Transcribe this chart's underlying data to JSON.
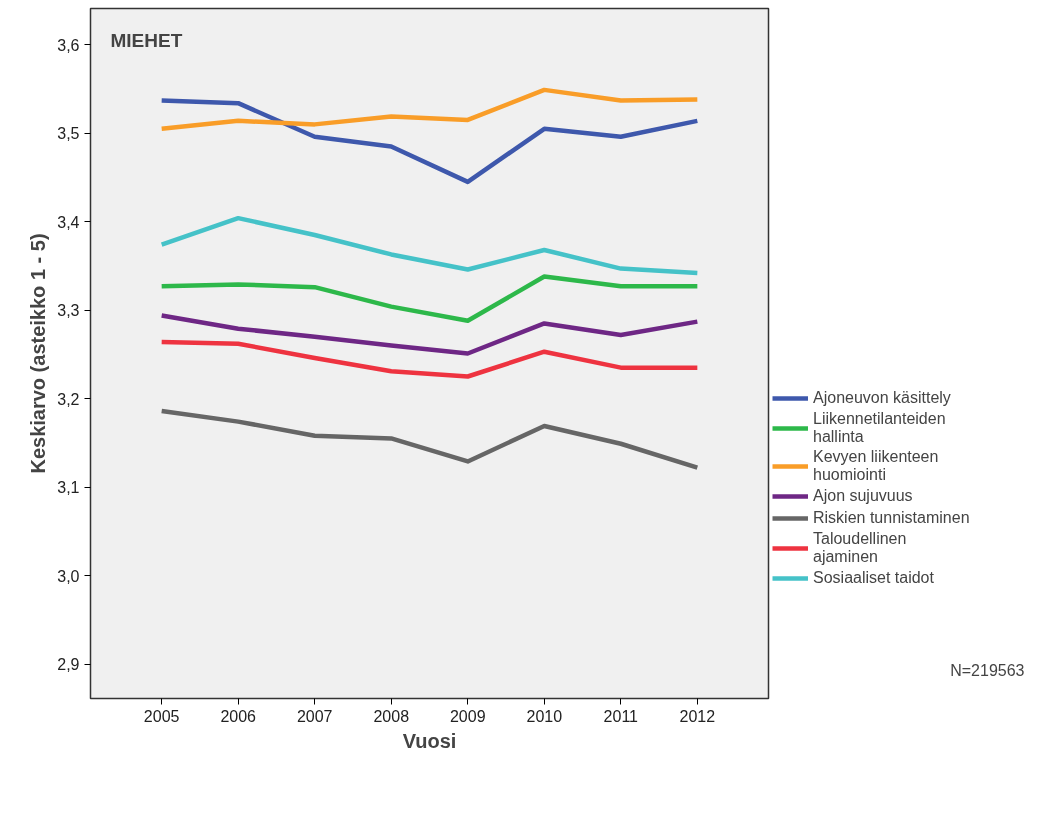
{
  "chart_data": {
    "type": "line",
    "title": "MIEHET",
    "xlabel": "Vuosi",
    "ylabel": "Keskiarvo (asteikko 1 - 5)",
    "x": [
      2005,
      2006,
      2007,
      2008,
      2009,
      2010,
      2011,
      2012
    ],
    "xlim": [
      2004.07,
      2012.93
    ],
    "xticks": [
      2005,
      2006,
      2007,
      2008,
      2009,
      2010,
      2011,
      2012
    ],
    "ylim": [
      2.861,
      3.641
    ],
    "yticks": [
      {
        "value": 2.9,
        "label": "2,9"
      },
      {
        "value": 3.0,
        "label": "3,0"
      },
      {
        "value": 3.1,
        "label": "3,1"
      },
      {
        "value": 3.2,
        "label": "3,2"
      },
      {
        "value": 3.3,
        "label": "3,3"
      },
      {
        "value": 3.4,
        "label": "3,4"
      },
      {
        "value": 3.5,
        "label": "3,5"
      },
      {
        "value": 3.6,
        "label": "3,6"
      }
    ],
    "grid": false,
    "legend": "right",
    "line_style": "solid",
    "marker": "none",
    "annotations": [
      "N=219563"
    ],
    "series": [
      {
        "name": "Ajoneuvon käsittely",
        "color": "#3e58ac",
        "values": [
          3.537,
          3.534,
          3.496,
          3.485,
          3.445,
          3.505,
          3.496,
          3.514
        ]
      },
      {
        "name": "Liikennetilanteiden hallinta",
        "color": "#2db84a",
        "values": [
          3.327,
          3.329,
          3.326,
          3.304,
          3.288,
          3.338,
          3.327,
          3.327
        ]
      },
      {
        "name": "Kevyen liikenteen huomiointi",
        "color": "#f99d28",
        "values": [
          3.505,
          3.514,
          3.51,
          3.519,
          3.515,
          3.549,
          3.537,
          3.538
        ]
      },
      {
        "name": "Ajon sujuvuus",
        "color": "#6e2785",
        "values": [
          3.294,
          3.279,
          3.27,
          3.26,
          3.251,
          3.285,
          3.272,
          3.287
        ]
      },
      {
        "name": "Riskien tunnistaminen",
        "color": "#666666",
        "values": [
          3.186,
          3.174,
          3.158,
          3.155,
          3.129,
          3.169,
          3.149,
          3.122
        ]
      },
      {
        "name": "Taloudellinen ajaminen",
        "color": "#ee3340",
        "values": [
          3.264,
          3.262,
          3.246,
          3.231,
          3.225,
          3.253,
          3.235,
          3.235
        ]
      },
      {
        "name": "Sosiaaliset taidot",
        "color": "#45c2c8",
        "values": [
          3.374,
          3.404,
          3.385,
          3.363,
          3.346,
          3.368,
          3.347,
          3.342
        ]
      }
    ]
  }
}
